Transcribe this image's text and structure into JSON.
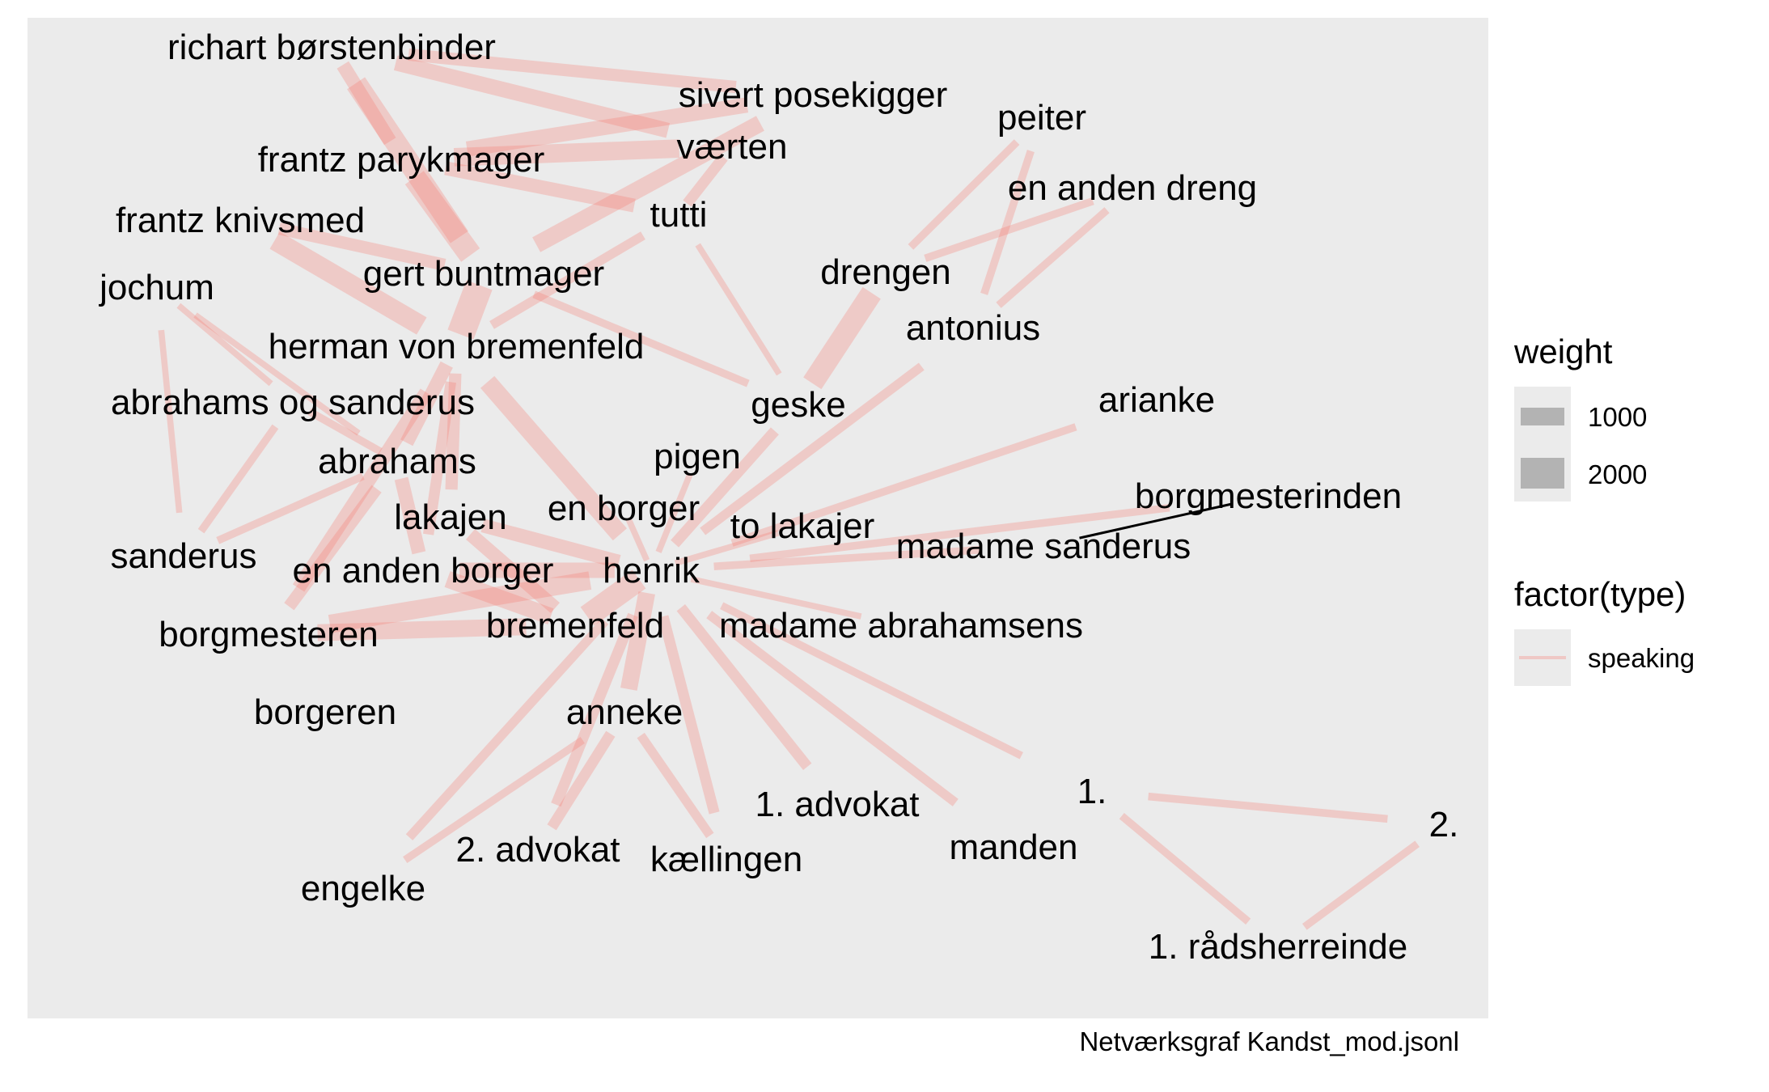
{
  "chart_data": {
    "type": "network",
    "caption": "Netværksgraf Kandst_mod.jsonl",
    "edge_color": "#F8766D",
    "panel_color": "#EBEBEB",
    "legend": {
      "weight_title": "weight",
      "weight_items": [
        {
          "label": "1000",
          "value": 1000
        },
        {
          "label": "2000",
          "value": 2000
        }
      ],
      "type_title": "factor(type)",
      "type_items": [
        {
          "label": "speaking",
          "color": "#F8766D"
        }
      ]
    },
    "nodes": [
      "richart børstenbinder",
      "sivert posekigger",
      "værten",
      "peiter",
      "frantz parykmager",
      "tutti",
      "en anden dreng",
      "frantz knivsmed",
      "gert buntmager",
      "drengen",
      "jochum",
      "antonius",
      "herman von bremenfeld",
      "abrahams og sanderus",
      "geske",
      "arianke",
      "pigen",
      "abrahams",
      "borgmesterinden",
      "lakajen",
      "en borger",
      "to lakajer",
      "madame sanderus",
      "sanderus",
      "en anden borger",
      "henrik",
      "borgmesteren",
      "bremenfeld",
      "madame abrahamsens",
      "borgeren",
      "anneke",
      "1.",
      "1. advokat",
      "2.",
      "manden",
      "2. advokat",
      "kællingen",
      "engelke",
      "1. rådsherreinde"
    ],
    "edges": [
      {
        "source": "richart børstenbinder",
        "target": "frantz parykmager",
        "weight": 900
      },
      {
        "source": "richart børstenbinder",
        "target": "gert buntmager",
        "weight": 1400
      },
      {
        "source": "richart børstenbinder",
        "target": "værten",
        "weight": 1000
      },
      {
        "source": "richart børstenbinder",
        "target": "sivert posekigger",
        "weight": 800
      },
      {
        "source": "sivert posekigger",
        "target": "frantz parykmager",
        "weight": 1000
      },
      {
        "source": "sivert posekigger",
        "target": "gert buntmager",
        "weight": 1100
      },
      {
        "source": "værten",
        "target": "frantz parykmager",
        "weight": 1200
      },
      {
        "source": "værten",
        "target": "tutti",
        "weight": 700
      },
      {
        "source": "tutti",
        "target": "frantz parykmager",
        "weight": 900
      },
      {
        "source": "tutti",
        "target": "herman von bremenfeld",
        "weight": 600
      },
      {
        "source": "frantz parykmager",
        "target": "gert buntmager",
        "weight": 1500
      },
      {
        "source": "frantz knivsmed",
        "target": "herman von bremenfeld",
        "weight": 1300
      },
      {
        "source": "frantz knivsmed",
        "target": "gert buntmager",
        "weight": 800
      },
      {
        "source": "gert buntmager",
        "target": "herman von bremenfeld",
        "weight": 1800
      },
      {
        "source": "gert buntmager",
        "target": "geske",
        "weight": 500
      },
      {
        "source": "tutti",
        "target": "geske",
        "weight": 400
      },
      {
        "source": "peiter",
        "target": "antonius",
        "weight": 500
      },
      {
        "source": "peiter",
        "target": "drengen",
        "weight": 500
      },
      {
        "source": "en anden dreng",
        "target": "antonius",
        "weight": 500
      },
      {
        "source": "en anden dreng",
        "target": "drengen",
        "weight": 500
      },
      {
        "source": "geske",
        "target": "drengen",
        "weight": 1400
      },
      {
        "source": "geske",
        "target": "henrik",
        "weight": 700
      },
      {
        "source": "antonius",
        "target": "henrik",
        "weight": 600
      },
      {
        "source": "henrik",
        "target": "arianke",
        "weight": 500
      },
      {
        "source": "henrik",
        "target": "borgmesterinden",
        "weight": 500
      },
      {
        "source": "henrik",
        "target": "madame sanderus",
        "weight": 500
      },
      {
        "source": "henrik",
        "target": "to lakajer",
        "weight": 400
      },
      {
        "source": "henrik",
        "target": "pigen",
        "weight": 400
      },
      {
        "source": "henrik",
        "target": "en borger",
        "weight": 400
      },
      {
        "source": "jochum",
        "target": "abrahams og sanderus",
        "weight": 400
      },
      {
        "source": "jochum",
        "target": "abrahams",
        "weight": 400
      },
      {
        "source": "jochum",
        "target": "sanderus",
        "weight": 400
      },
      {
        "source": "herman von bremenfeld",
        "target": "abrahams",
        "weight": 900
      },
      {
        "source": "herman von bremenfeld",
        "target": "henrik",
        "weight": 1200
      },
      {
        "source": "herman von bremenfeld",
        "target": "lakajen",
        "weight": 800
      },
      {
        "source": "herman von bremenfeld",
        "target": "en anden borger",
        "weight": 700
      },
      {
        "source": "herman von bremenfeld",
        "target": "borgmesteren",
        "weight": 900
      },
      {
        "source": "abrahams og sanderus",
        "target": "sanderus",
        "weight": 500
      },
      {
        "source": "abrahams og sanderus",
        "target": "abrahams",
        "weight": 500
      },
      {
        "source": "abrahams",
        "target": "en anden borger",
        "weight": 900
      },
      {
        "source": "abrahams",
        "target": "borgmesteren",
        "weight": 800
      },
      {
        "source": "sanderus",
        "target": "abrahams",
        "weight": 500
      },
      {
        "source": "lakajen",
        "target": "henrik",
        "weight": 900
      },
      {
        "source": "lakajen",
        "target": "bremenfeld",
        "weight": 900
      },
      {
        "source": "en anden borger",
        "target": "henrik",
        "weight": 1000
      },
      {
        "source": "en anden borger",
        "target": "bremenfeld",
        "weight": 1100
      },
      {
        "source": "borgmesteren",
        "target": "henrik",
        "weight": 1200
      },
      {
        "source": "borgmesteren",
        "target": "bremenfeld",
        "weight": 1100
      },
      {
        "source": "bremenfeld",
        "target": "henrik",
        "weight": 1500
      },
      {
        "source": "henrik",
        "target": "madame abrahamsens",
        "weight": 400
      },
      {
        "source": "henrik",
        "target": "anneke",
        "weight": 1100
      },
      {
        "source": "henrik",
        "target": "1. advokat",
        "weight": 700
      },
      {
        "source": "henrik",
        "target": "2. advokat",
        "weight": 700
      },
      {
        "source": "henrik",
        "target": "kællingen",
        "weight": 700
      },
      {
        "source": "henrik",
        "target": "engelke",
        "weight": 600
      },
      {
        "source": "henrik",
        "target": "manden",
        "weight": 600
      },
      {
        "source": "henrik",
        "target": "1.",
        "weight": 500
      },
      {
        "source": "anneke",
        "target": "2. advokat",
        "weight": 700
      },
      {
        "source": "anneke",
        "target": "kællingen",
        "weight": 600
      },
      {
        "source": "anneke",
        "target": "engelke",
        "weight": 500
      },
      {
        "source": "1.",
        "target": "2.",
        "weight": 500
      },
      {
        "source": "1.",
        "target": "1. rådsherreinde",
        "weight": 500
      },
      {
        "source": "2.",
        "target": "1. rådsherreinde",
        "weight": 500
      },
      {
        "source": "borgmesterinden",
        "target": "madame sanderus",
        "weight": 100
      }
    ]
  }
}
